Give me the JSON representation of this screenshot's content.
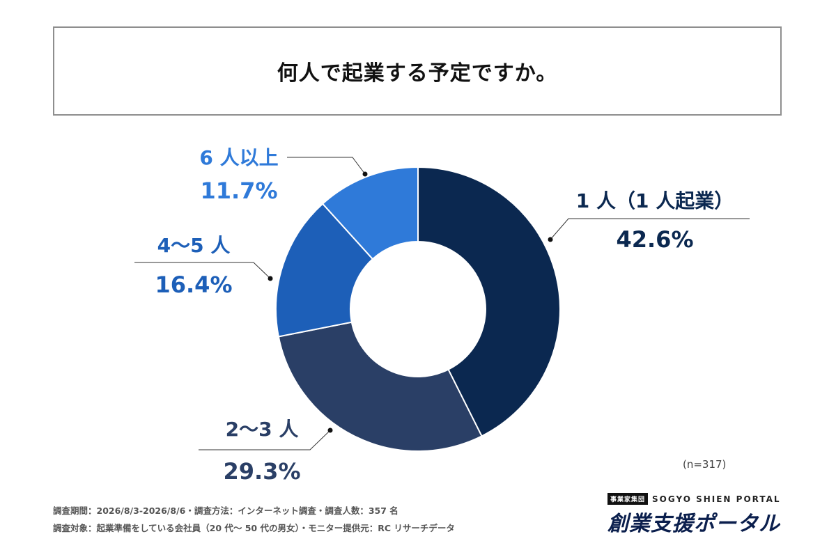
{
  "title": "何人で起業する予定ですか。",
  "chart_data": {
    "type": "pie",
    "donut": true,
    "slices": [
      {
        "label": "1 人（1 人起業）",
        "value": 42.6,
        "value_label": "42.6%",
        "color": "#0b2850",
        "label_color": "#0b2850"
      },
      {
        "label": "2〜3 人",
        "value": 29.3,
        "value_label": "29.3%",
        "color": "#2a3f66",
        "label_color": "#2a3f66"
      },
      {
        "label": "4〜5 人",
        "value": 16.4,
        "value_label": "16.4%",
        "color": "#1d5fb8",
        "label_color": "#1d5fb8"
      },
      {
        "label": "6 人以上",
        "value": 11.7,
        "value_label": "11.7%",
        "color": "#2f7ad9",
        "label_color": "#2f7ad9"
      }
    ],
    "sample_size": "(n=317)"
  },
  "footer": {
    "line1": "調査期間：2026/8/3-2026/8/6・調査方法：インターネット調査・調査人数：357 名",
    "line2": "調査対象：起業準備をしている会社員（20 代〜 50 代の男女）・モニター提供元：RC リサーチデータ"
  },
  "brand": {
    "group": "事業家集団",
    "english": "SOGYO SHIEN PORTAL",
    "japanese": "創業支援ポータル"
  }
}
